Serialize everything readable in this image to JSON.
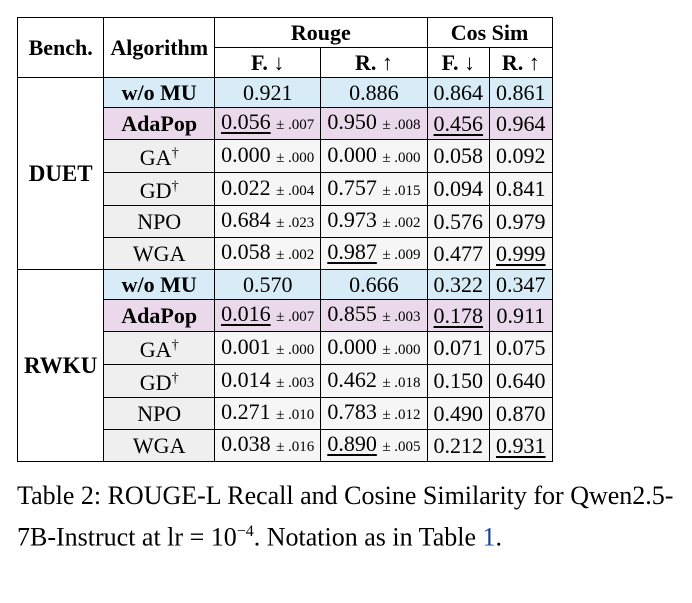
{
  "table": {
    "headers": {
      "bench": "Bench.",
      "algorithm": "Algorithm",
      "rouge": "Rouge",
      "cos_sim": "Cos Sim",
      "f_down": "F. ↓",
      "r_up": "R. ↑"
    },
    "groups": [
      {
        "bench": "DUET",
        "rows": [
          {
            "algo": "w/o MU",
            "dagger": "",
            "rouge_f": "0.921",
            "rouge_f_sd": "",
            "rouge_r": "0.886",
            "rouge_r_sd": "",
            "cos_f": "0.864",
            "cos_r": "0.861"
          },
          {
            "algo": "AdaPop",
            "dagger": "",
            "rouge_f": "0.056",
            "rouge_f_sd": "± .007",
            "rouge_r": "0.950",
            "rouge_r_sd": "± .008",
            "cos_f": "0.456",
            "cos_r": "0.964"
          },
          {
            "algo": "GA",
            "dagger": "†",
            "rouge_f": "0.000",
            "rouge_f_sd": "± .000",
            "rouge_r": "0.000",
            "rouge_r_sd": "± .000",
            "cos_f": "0.058",
            "cos_r": "0.092"
          },
          {
            "algo": "GD",
            "dagger": "†",
            "rouge_f": "0.022",
            "rouge_f_sd": "± .004",
            "rouge_r": "0.757",
            "rouge_r_sd": "± .015",
            "cos_f": "0.094",
            "cos_r": "0.841"
          },
          {
            "algo": "NPO",
            "dagger": "",
            "rouge_f": "0.684",
            "rouge_f_sd": "± .023",
            "rouge_r": "0.973",
            "rouge_r_sd": "± .002",
            "cos_f": "0.576",
            "cos_r": "0.979"
          },
          {
            "algo": "WGA",
            "dagger": "",
            "rouge_f": "0.058",
            "rouge_f_sd": "± .002",
            "rouge_r": "0.987",
            "rouge_r_sd": "± .009",
            "cos_f": "0.477",
            "cos_r": "0.999"
          }
        ]
      },
      {
        "bench": "RWKU",
        "rows": [
          {
            "algo": "w/o MU",
            "dagger": "",
            "rouge_f": "0.570",
            "rouge_f_sd": "",
            "rouge_r": "0.666",
            "rouge_r_sd": "",
            "cos_f": "0.322",
            "cos_r": "0.347"
          },
          {
            "algo": "AdaPop",
            "dagger": "",
            "rouge_f": "0.016",
            "rouge_f_sd": "± .007",
            "rouge_r": "0.855",
            "rouge_r_sd": "± .003",
            "cos_f": "0.178",
            "cos_r": "0.911"
          },
          {
            "algo": "GA",
            "dagger": "†",
            "rouge_f": "0.001",
            "rouge_f_sd": "± .000",
            "rouge_r": "0.000",
            "rouge_r_sd": "± .000",
            "cos_f": "0.071",
            "cos_r": "0.075"
          },
          {
            "algo": "GD",
            "dagger": "†",
            "rouge_f": "0.014",
            "rouge_f_sd": "± .003",
            "rouge_r": "0.462",
            "rouge_r_sd": "± .018",
            "cos_f": "0.150",
            "cos_r": "0.640"
          },
          {
            "algo": "NPO",
            "dagger": "",
            "rouge_f": "0.271",
            "rouge_f_sd": "± .010",
            "rouge_r": "0.783",
            "rouge_r_sd": "± .012",
            "cos_f": "0.490",
            "cos_r": "0.870"
          },
          {
            "algo": "WGA",
            "dagger": "",
            "rouge_f": "0.038",
            "rouge_f_sd": "± .016",
            "rouge_r": "0.890",
            "rouge_r_sd": "± .005",
            "cos_f": "0.212",
            "cos_r": "0.931"
          }
        ]
      }
    ]
  },
  "caption": {
    "prefix": "Table 2: ROUGE-L Recall and Cosine Similarity for Qwen2.5-7B-Instruct at lr = 10",
    "exponent": "−4",
    "middle": ". Notation as in Table ",
    "ref": "1",
    "suffix": "."
  },
  "colors": {
    "baseline_row": "#d8ecf7",
    "adapop_row": "#ead9ea",
    "other_row": "#efefef",
    "link": "#1a3ea8"
  }
}
